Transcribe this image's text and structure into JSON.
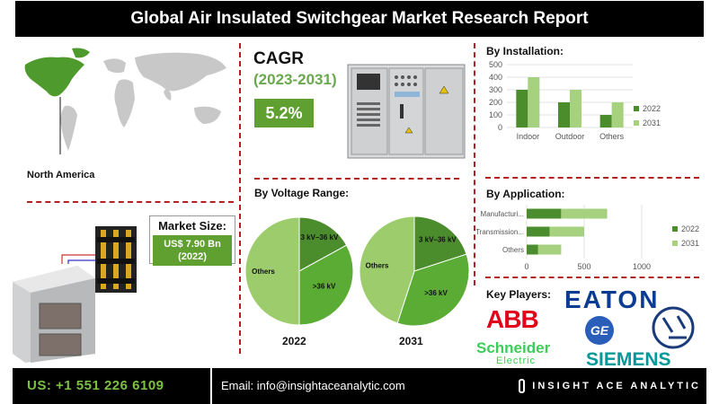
{
  "title": "Global Air Insulated Switchgear Market Research Report",
  "region": {
    "label": "North America"
  },
  "cagr": {
    "title": "CAGR",
    "years": "(2023-2031)",
    "value": "5.2%"
  },
  "market_size": {
    "title": "Market Size:",
    "line1": "US$ 7.90 Bn",
    "line2": "(2022)"
  },
  "voltage": {
    "title": "By Voltage Range:",
    "year_a": "2022",
    "year_b": "2031",
    "slices_a": [
      {
        "label": "3 kV–36 kV",
        "value": 17,
        "color": "#4b8c2d"
      },
      {
        "label": ">36 kV",
        "value": 33,
        "color": "#5aac34"
      },
      {
        "label": "Others",
        "value": 50,
        "color": "#9ccc6c"
      }
    ],
    "slices_b": [
      {
        "label": "3 kV–36 kV",
        "value": 20,
        "color": "#4b8c2d"
      },
      {
        "label": ">36 kV",
        "value": 35,
        "color": "#5aac34"
      },
      {
        "label": "Others",
        "value": 45,
        "color": "#9ccc6c"
      }
    ]
  },
  "key_players": {
    "title": "Key Players:",
    "logos": [
      "ABB",
      "EATON",
      "Schneider",
      "Electric",
      "SIEMENS"
    ]
  },
  "contact": {
    "phone": "US: +1 551 226 6109",
    "email": "Email: info@insightaceanalytic.com",
    "brand": "INSIGHT ACE ANALYTIC"
  },
  "chart_data": [
    {
      "type": "bar",
      "title": "By Installation:",
      "categories": [
        "Indoor",
        "Outdoor",
        "Others"
      ],
      "series": [
        {
          "name": "2022",
          "values": [
            300,
            200,
            100
          ],
          "color": "#4b8c2d"
        },
        {
          "name": "2031",
          "values": [
            400,
            300,
            200
          ],
          "color": "#a6d17e"
        }
      ],
      "ylim": [
        0,
        500
      ],
      "yticks": [
        0,
        100,
        200,
        300,
        400,
        500
      ],
      "legend": "right"
    },
    {
      "type": "bar",
      "orientation": "horizontal",
      "title": "By Application:",
      "categories": [
        "Manufacturi...",
        "Transmission...",
        "Others"
      ],
      "series": [
        {
          "name": "2022",
          "values": [
            300,
            200,
            100
          ],
          "color": "#4b8c2d"
        },
        {
          "name": "2031",
          "values": [
            700,
            500,
            300
          ],
          "color": "#a6d17e"
        }
      ],
      "xlim": [
        0,
        1000
      ],
      "xticks": [
        0,
        500,
        1000
      ],
      "legend": "right"
    }
  ]
}
